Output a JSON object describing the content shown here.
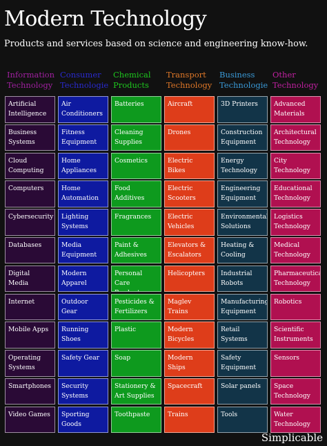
{
  "title": "Modern Technology",
  "subtitle": "Products and services based on science and engineering know-how.",
  "brand": "Simplicable",
  "columns": [
    {
      "heading": "Information Technology",
      "heading_color": "#a020a0",
      "cell_color": "#2a0a36",
      "items": [
        "Artificial Intelligence",
        "Business Systems",
        "Cloud Computing",
        "Computers",
        "Cybersecurity",
        "Databases",
        "Digital Media",
        "Internet",
        "Mobile Apps",
        "Operating Systems",
        "Smartphones",
        "Video Games"
      ]
    },
    {
      "heading": "Consumer Technologies",
      "heading_color": "#2a2ad0",
      "cell_color": "#0e1aa0",
      "items": [
        "Air Conditioners",
        "Fitness Equipment",
        "Home Appliances",
        "Home Automation",
        "Lighting Systems",
        "Media Equipment",
        "Modern Apparel",
        "Outdoor Gear",
        "Running Shoes",
        "Safety Gear",
        "Security Systems",
        "Sporting Goods"
      ]
    },
    {
      "heading": "Chemical Products",
      "heading_color": "#1ec81e",
      "cell_color": "#0e9a1e",
      "items": [
        "Batteries",
        "Cleaning Supplies",
        "Cosmetics",
        "Food Additives",
        "Fragrances",
        "Paint & Adhesives",
        "Personal Care Products",
        "Pesticides & Fertilizers",
        "Plastic",
        "Soap",
        "Stationery & Art Supplies",
        "Toothpaste"
      ]
    },
    {
      "heading": "Transport Technology",
      "heading_color": "#e07828",
      "cell_color": "#de3d1a",
      "items": [
        "Aircraft",
        "Drones",
        "Electric Bikes",
        "Electric Scooters",
        "Electric Vehicles",
        "Elevators & Escalators",
        "Helicopters",
        "Maglev Trains",
        "Modern Bicycles",
        "Modern Ships",
        "Spacecraft",
        "Trains"
      ]
    },
    {
      "heading": "Business Technologies",
      "heading_color": "#3a9ad8",
      "cell_color": "#123448",
      "items": [
        "3D Printers",
        "Construction Equipment",
        "Energy Technology",
        "Engineering Equipment",
        "Environmental Solutions",
        "Heating & Cooling",
        "Industrial Robots",
        "Manufacturing Equipment",
        "Retail Systems",
        "Safety Equipment",
        "Solar panels",
        "Tools"
      ]
    },
    {
      "heading": "Other Technology",
      "heading_color": "#c020a0",
      "cell_color": "#b01050",
      "items": [
        "Advanced Materials",
        "Architectural Technology",
        "City Technology",
        "Educational Technology",
        "Logistics Technology",
        "Medical Technology",
        "Pharmaceutical Technology",
        "Robotics",
        "Scientific Instruments",
        "Sensors",
        "Space Technology",
        "Water Technology"
      ]
    }
  ]
}
